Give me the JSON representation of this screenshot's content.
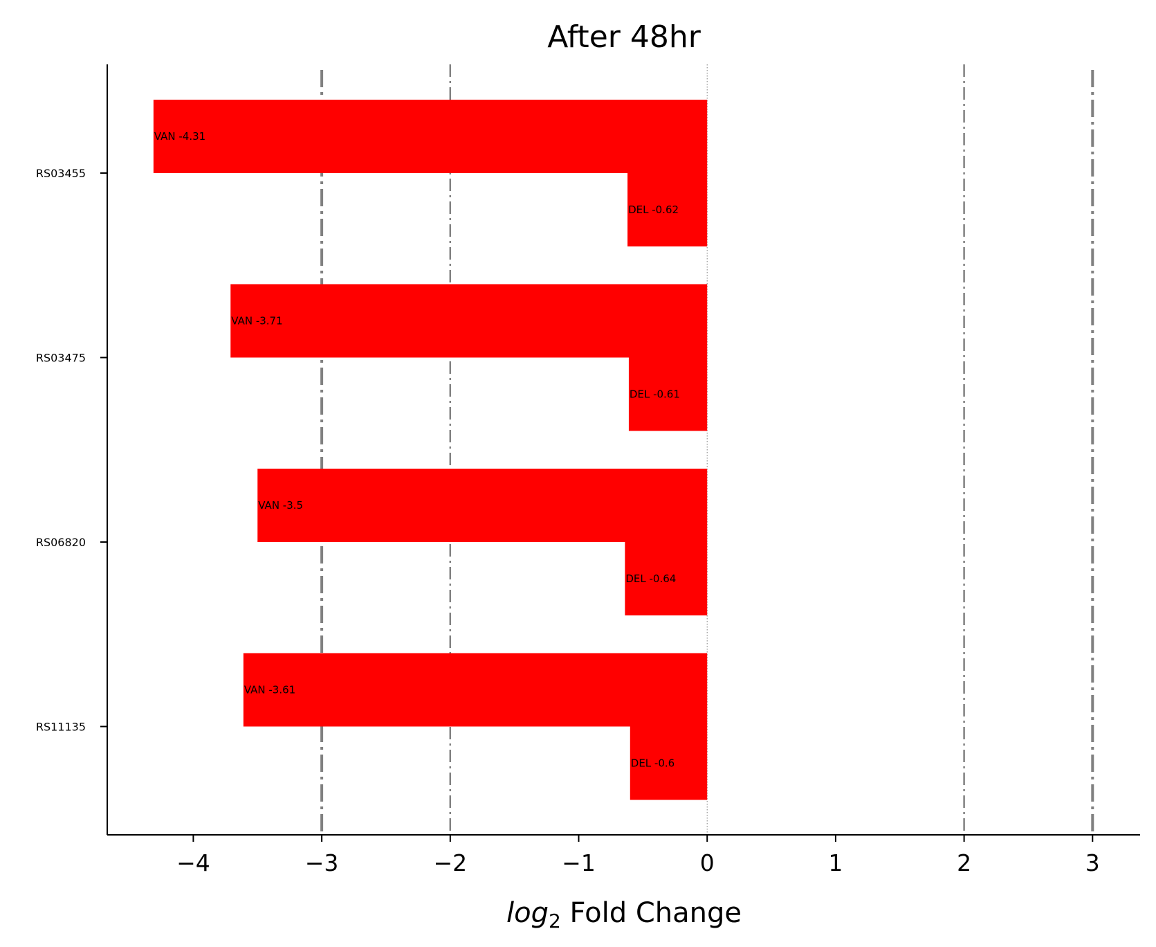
{
  "chart_data": {
    "type": "bar",
    "orientation": "horizontal",
    "title": "After 48hr",
    "xlabel_italic": "log",
    "xlabel_subscript": "2",
    "xlabel_rest": " Fold Change",
    "xlim": [
      -4.67,
      3.37
    ],
    "xticks": [
      -4,
      -3,
      -2,
      -1,
      0,
      1,
      2,
      3
    ],
    "xtick_labels": [
      "−4",
      "−3",
      "−2",
      "−1",
      "0",
      "1",
      "2",
      "3"
    ],
    "categories": [
      "RS03455",
      "RS03475",
      "RS06820",
      "RS11135"
    ],
    "series": [
      {
        "name": "VAN",
        "values": [
          -4.31,
          -3.71,
          -3.5,
          -3.61
        ]
      },
      {
        "name": "DEL",
        "values": [
          -0.62,
          -0.61,
          -0.64,
          -0.6
        ]
      }
    ],
    "bar_labels": {
      "VAN": [
        "VAN -4.31",
        "VAN -3.71",
        "VAN -3.5",
        "VAN -3.61"
      ],
      "DEL": [
        "DEL -0.62",
        "DEL -0.61",
        "DEL -0.64",
        "DEL -0.6"
      ]
    },
    "reference_lines": [
      {
        "x": -3,
        "style": "dashdot",
        "weight": "thick"
      },
      {
        "x": -2,
        "style": "dashdot",
        "weight": "thin"
      },
      {
        "x": 0,
        "style": "dotted",
        "weight": "hair"
      },
      {
        "x": 2,
        "style": "dashdot",
        "weight": "thin"
      },
      {
        "x": 3,
        "style": "dashdot",
        "weight": "thick"
      }
    ],
    "bar_color": "#ff0000",
    "line_color": "#808080",
    "grid": false,
    "legend": "none"
  }
}
